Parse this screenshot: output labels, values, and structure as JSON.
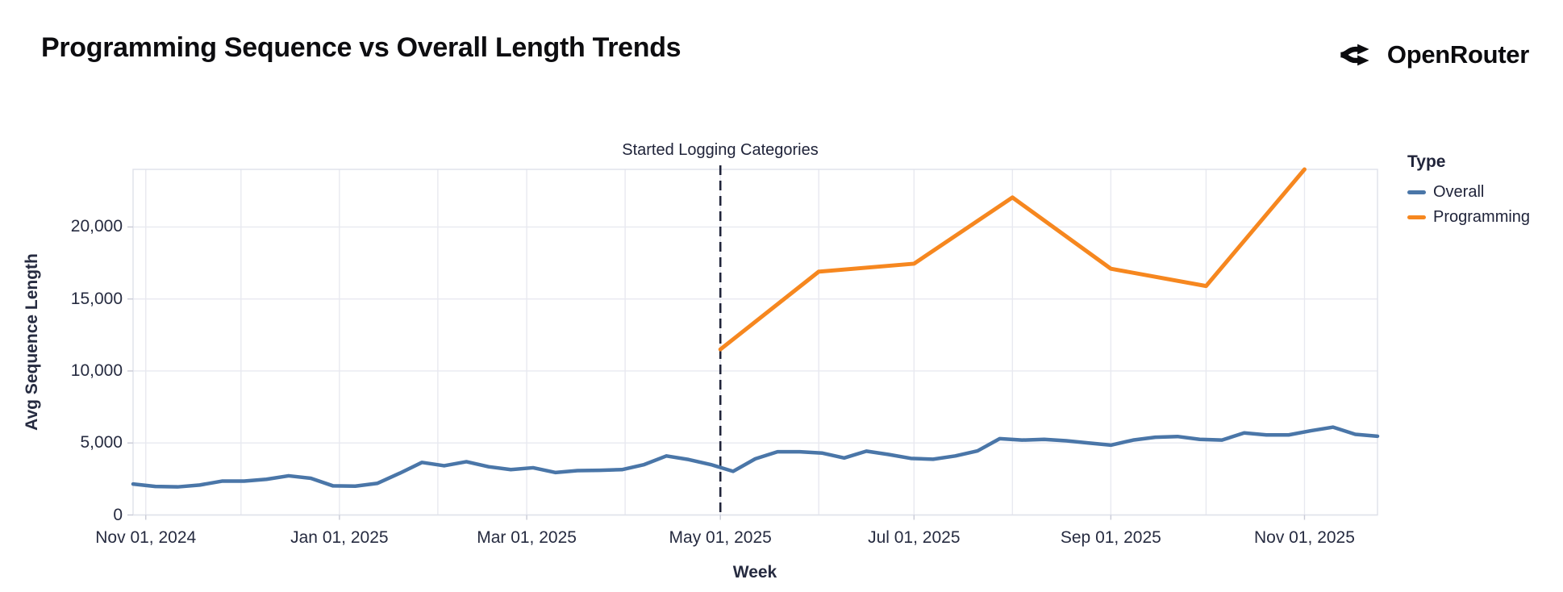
{
  "page": {
    "title": "Programming Sequence vs Overall Length Trends",
    "brand": "OpenRouter"
  },
  "legend": {
    "title": "Type",
    "items": [
      {
        "label": "Overall",
        "color": "#4a76a8"
      },
      {
        "label": "Programming",
        "color": "#f6871f"
      }
    ]
  },
  "chart_data": {
    "type": "line",
    "title": "Programming Sequence vs Overall Length Trends",
    "xlabel": "Week",
    "ylabel": "Avg Sequence Length",
    "x_domain": [
      "2024-10-28",
      "2025-11-24"
    ],
    "ylim": [
      0,
      24000
    ],
    "grid": true,
    "legend_position": "right",
    "annotation": {
      "label": "Started Logging Categories",
      "date": "2025-05-01",
      "style": "dashed-vertical-rule"
    },
    "y_ticks": [
      {
        "value": 0,
        "label": "0"
      },
      {
        "value": 5000,
        "label": "5,000"
      },
      {
        "value": 10000,
        "label": "10,000"
      },
      {
        "value": 15000,
        "label": "15,000"
      },
      {
        "value": 20000,
        "label": "20,000"
      }
    ],
    "x_ticks": [
      {
        "date": "2024-11-01",
        "label": "Nov 01, 2024"
      },
      {
        "date": "2025-01-01",
        "label": "Jan 01, 2025"
      },
      {
        "date": "2025-03-01",
        "label": "Mar 01, 2025"
      },
      {
        "date": "2025-05-01",
        "label": "May 01, 2025"
      },
      {
        "date": "2025-07-01",
        "label": "Jul 01, 2025"
      },
      {
        "date": "2025-09-01",
        "label": "Sep 01, 2025"
      },
      {
        "date": "2025-11-01",
        "label": "Nov 01, 2025"
      }
    ],
    "x_gridline_dates": [
      "2024-11-01",
      "2024-12-01",
      "2025-01-01",
      "2025-02-01",
      "2025-03-01",
      "2025-04-01",
      "2025-05-01",
      "2025-06-01",
      "2025-07-01",
      "2025-08-01",
      "2025-09-01",
      "2025-10-01",
      "2025-11-01"
    ],
    "series": [
      {
        "name": "Overall",
        "color": "#4a76a8",
        "stroke_width": 4.5,
        "start": "2024-10-28",
        "interval_days": 7,
        "values": [
          2150,
          1980,
          1950,
          2080,
          2350,
          2350,
          2480,
          2720,
          2550,
          2020,
          2000,
          2200,
          2900,
          3650,
          3420,
          3700,
          3350,
          3150,
          3280,
          2950,
          3080,
          3100,
          3150,
          3500,
          4100,
          3850,
          3500,
          3030,
          3900,
          4390,
          4390,
          4300,
          3960,
          4430,
          4200,
          3930,
          3870,
          4100,
          4450,
          5300,
          5200,
          5250,
          5150,
          5000,
          4850,
          5200,
          5400,
          5450,
          5250,
          5200,
          5700,
          5560,
          5560,
          5850,
          6100,
          5600,
          5470
        ]
      },
      {
        "name": "Programming",
        "color": "#f6871f",
        "stroke_width": 5,
        "dates": [
          "2025-05-01",
          "2025-06-01",
          "2025-07-01",
          "2025-08-01",
          "2025-09-01",
          "2025-10-01",
          "2025-11-01"
        ],
        "values": [
          11500,
          16900,
          17450,
          22050,
          17100,
          15900,
          24000
        ]
      }
    ]
  }
}
